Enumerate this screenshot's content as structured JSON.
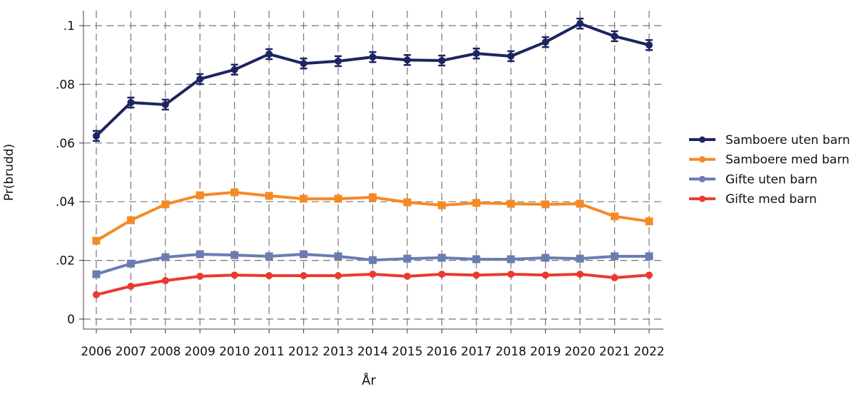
{
  "chart_data": {
    "type": "line",
    "title": "",
    "xlabel": "År",
    "ylabel": "Pr(brudd)",
    "x": [
      2006,
      2007,
      2008,
      2009,
      2010,
      2011,
      2012,
      2013,
      2014,
      2015,
      2016,
      2017,
      2018,
      2019,
      2020,
      2021,
      2022
    ],
    "xtick_labels": [
      "2006",
      "2007",
      "2008",
      "2009",
      "2010",
      "2011",
      "2012",
      "2013",
      "2014",
      "2015",
      "2016",
      "2017",
      "2018",
      "2019",
      "2020",
      "2021",
      "2022"
    ],
    "yticks": [
      0,
      0.02,
      0.04,
      0.06,
      0.08,
      0.1
    ],
    "ytick_labels": [
      "0",
      ".02",
      ".04",
      ".06",
      ".08",
      ".1"
    ],
    "ylim": [
      0,
      0.1
    ],
    "grid": true,
    "legend_position": "right",
    "series": [
      {
        "name": "Samboere uten barn",
        "color": "#1d2560",
        "marker": "circle",
        "error_bars": true,
        "values": [
          0.0624,
          0.0738,
          0.0731,
          0.0818,
          0.085,
          0.0903,
          0.0871,
          0.0879,
          0.0893,
          0.0883,
          0.0881,
          0.0905,
          0.0896,
          0.0944,
          0.1007,
          0.0964,
          0.0934
        ]
      },
      {
        "name": "Samboere med barn",
        "color": "#f58a25",
        "marker": "square",
        "values": [
          0.0267,
          0.0337,
          0.0391,
          0.0422,
          0.0432,
          0.042,
          0.041,
          0.041,
          0.0415,
          0.0398,
          0.0388,
          0.0396,
          0.0393,
          0.0391,
          0.0393,
          0.035,
          0.0333
        ]
      },
      {
        "name": "Gifte uten barn",
        "color": "#6b7cb0",
        "marker": "square",
        "values": [
          0.0153,
          0.0189,
          0.0211,
          0.0221,
          0.0218,
          0.0214,
          0.0221,
          0.0214,
          0.0201,
          0.0206,
          0.0209,
          0.0204,
          0.0204,
          0.0209,
          0.0206,
          0.0214,
          0.0214
        ]
      },
      {
        "name": "Gifte med barn",
        "color": "#e93a30",
        "marker": "circle",
        "values": [
          0.0083,
          0.0112,
          0.0131,
          0.0146,
          0.015,
          0.0148,
          0.0148,
          0.0148,
          0.0153,
          0.0146,
          0.0153,
          0.015,
          0.0153,
          0.015,
          0.0153,
          0.0141,
          0.015
        ]
      }
    ]
  }
}
